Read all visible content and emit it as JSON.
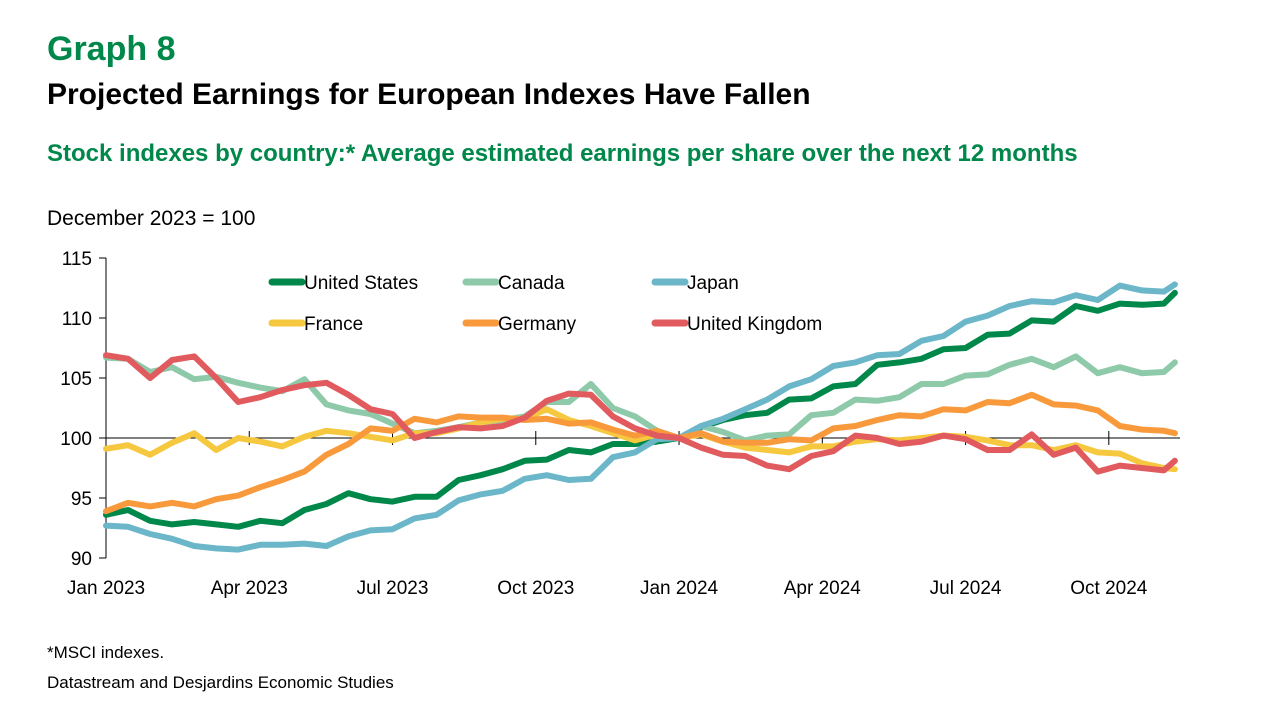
{
  "header": {
    "graph_number": "Graph 8",
    "title": "Projected Earnings for European Indexes Have Fallen",
    "subtitle": "Stock indexes by country:* Average estimated earnings per share over the next 12 months",
    "unit_note": "December 2023 = 100"
  },
  "footer": {
    "footnote": "*MSCI indexes.",
    "source": "Datastream and Desjardins Economic Studies"
  },
  "chart_data": {
    "type": "line",
    "title": "Projected Earnings for European Indexes Have Fallen",
    "xlabel": "",
    "ylabel": "December 2023 = 100",
    "ylim": [
      90,
      115
    ],
    "yticks": [
      90,
      95,
      100,
      105,
      110,
      115
    ],
    "xticks": [
      {
        "week": 0,
        "label": "Jan 2023"
      },
      {
        "week": 13,
        "label": "Apr 2023"
      },
      {
        "week": 26,
        "label": "Jul 2023"
      },
      {
        "week": 39,
        "label": "Oct 2023"
      },
      {
        "week": 52,
        "label": "Jan 2024"
      },
      {
        "week": 65,
        "label": "Apr 2024"
      },
      {
        "week": 78,
        "label": "Jul 2024"
      },
      {
        "week": 91,
        "label": "Oct 2024"
      }
    ],
    "xlim_weeks": [
      0,
      104
    ],
    "x_unit": "weeks since first week of Jan 2023 (sampled every 2 weeks)",
    "reference_line": 100,
    "grid": false,
    "legend": "top-center",
    "x": [
      0,
      2,
      4,
      6,
      8,
      10,
      12,
      14,
      16,
      18,
      20,
      22,
      24,
      26,
      28,
      30,
      32,
      34,
      36,
      38,
      40,
      42,
      44,
      46,
      48,
      50,
      52,
      54,
      56,
      58,
      60,
      62,
      64,
      66,
      68,
      70,
      72,
      74,
      76,
      78,
      80,
      82,
      84,
      86,
      88,
      90,
      92,
      94,
      96,
      97
    ],
    "series": [
      {
        "name": "United States",
        "color": "#00874A",
        "values": [
          93.6,
          94.0,
          93.1,
          92.8,
          93.0,
          92.8,
          92.6,
          93.1,
          92.9,
          94.0,
          94.5,
          95.4,
          94.9,
          94.7,
          95.1,
          95.1,
          96.5,
          96.9,
          97.4,
          98.1,
          98.2,
          99.0,
          98.8,
          99.5,
          99.5,
          99.7,
          100.0,
          100.9,
          101.5,
          101.9,
          102.1,
          103.2,
          103.3,
          104.3,
          104.5,
          106.1,
          106.3,
          106.6,
          107.4,
          107.5,
          108.6,
          108.7,
          109.8,
          109.7,
          111.0,
          110.6,
          111.2,
          111.1,
          111.2,
          112.1
        ]
      },
      {
        "name": "Canada",
        "color": "#8ECAA9",
        "values": [
          106.7,
          106.6,
          105.5,
          105.9,
          104.9,
          105.1,
          104.6,
          104.2,
          103.9,
          104.9,
          102.8,
          102.3,
          102.0,
          101.2,
          100.4,
          100.6,
          100.9,
          101.3,
          101.5,
          101.8,
          103.0,
          103.0,
          104.5,
          102.5,
          101.8,
          100.6,
          100.0,
          101.0,
          100.5,
          99.8,
          100.2,
          100.3,
          101.9,
          102.1,
          103.2,
          103.1,
          103.4,
          104.5,
          104.5,
          105.2,
          105.3,
          106.1,
          106.6,
          105.9,
          106.8,
          105.4,
          105.9,
          105.4,
          105.5,
          106.3
        ]
      },
      {
        "name": "Japan",
        "color": "#6BB6C8",
        "values": [
          92.7,
          92.6,
          92.0,
          91.6,
          91.0,
          90.8,
          90.7,
          91.1,
          91.1,
          91.2,
          91.0,
          91.8,
          92.3,
          92.4,
          93.3,
          93.6,
          94.8,
          95.3,
          95.6,
          96.6,
          96.9,
          96.5,
          96.6,
          98.4,
          98.8,
          99.9,
          100.0,
          101.0,
          101.6,
          102.4,
          103.2,
          104.3,
          104.9,
          106.0,
          106.3,
          106.9,
          107.0,
          108.1,
          108.5,
          109.7,
          110.2,
          111.0,
          111.4,
          111.3,
          111.9,
          111.5,
          112.7,
          112.3,
          112.2,
          112.8
        ]
      },
      {
        "name": "France",
        "color": "#F6C840",
        "values": [
          99.1,
          99.4,
          98.6,
          99.6,
          100.4,
          99.0,
          100.0,
          99.7,
          99.3,
          100.1,
          100.6,
          100.4,
          100.1,
          99.8,
          100.4,
          100.4,
          100.8,
          101.3,
          101.6,
          101.6,
          102.4,
          101.5,
          101.0,
          100.4,
          99.8,
          100.3,
          100.0,
          100.3,
          99.7,
          99.2,
          99.0,
          98.8,
          99.3,
          99.3,
          99.7,
          99.9,
          99.8,
          100.0,
          100.2,
          100.1,
          99.8,
          99.4,
          99.4,
          99.0,
          99.4,
          98.8,
          98.7,
          97.9,
          97.5,
          97.4
        ]
      },
      {
        "name": "Germany",
        "color": "#F89A3C",
        "values": [
          93.9,
          94.6,
          94.3,
          94.6,
          94.3,
          94.9,
          95.2,
          95.9,
          96.5,
          97.2,
          98.6,
          99.5,
          100.8,
          100.6,
          101.6,
          101.3,
          101.8,
          101.7,
          101.7,
          101.5,
          101.6,
          101.2,
          101.3,
          100.7,
          100.2,
          100.6,
          100.0,
          100.4,
          99.7,
          99.6,
          99.6,
          99.9,
          99.8,
          100.8,
          101.0,
          101.5,
          101.9,
          101.8,
          102.4,
          102.3,
          103.0,
          102.9,
          103.6,
          102.8,
          102.7,
          102.3,
          101.0,
          100.7,
          100.6,
          100.4
        ]
      },
      {
        "name": "United Kingdom",
        "color": "#E05A5E",
        "values": [
          106.9,
          106.6,
          105.0,
          106.5,
          106.8,
          105.0,
          103.0,
          103.4,
          104.0,
          104.4,
          104.6,
          103.6,
          102.4,
          102.0,
          100.0,
          100.5,
          100.9,
          100.8,
          101.0,
          101.7,
          103.1,
          103.7,
          103.6,
          101.8,
          100.8,
          100.2,
          100.0,
          99.2,
          98.6,
          98.5,
          97.7,
          97.4,
          98.5,
          98.9,
          100.2,
          100.0,
          99.5,
          99.7,
          100.2,
          99.9,
          99.0,
          99.0,
          100.3,
          98.6,
          99.2,
          97.2,
          97.7,
          97.5,
          97.3,
          98.1
        ]
      }
    ]
  }
}
